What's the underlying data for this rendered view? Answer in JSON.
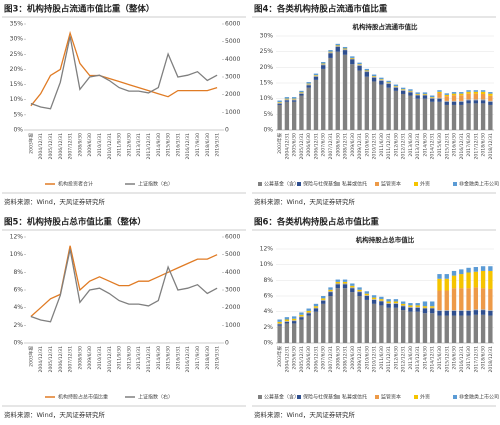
{
  "panels": [
    {
      "heading": "图3：机构持股占流通市值比重（整体）",
      "source": "资料来源：Wind，天风证券研究所"
    },
    {
      "heading": "图4：各类机构持股占流通市值比重",
      "source": "资料来源：Wind，天风证券研究所"
    },
    {
      "heading": "图5：机构持股占总市值比重（整体）",
      "source": "资料来源：Wind，天风证券研究所"
    },
    {
      "heading": "图6：各类机构持股占总市值比重",
      "source": "资料来源：Wind，天风证券研究所"
    }
  ],
  "chart_data": [
    {
      "type": "line",
      "categories": [
        "2003年报",
        "2004/12/31",
        "2005/12/31",
        "2006/12/31",
        "2007/12/31",
        "2008/9/30",
        "2009/6/30",
        "2010/3/31",
        "2010/12/31",
        "2011/9/30",
        "2012/6/30",
        "2013/3/31",
        "2013/12/31",
        "2014/9/30",
        "2015/6/30",
        "2016/3/31",
        "2016/12/31",
        "2017/9/30",
        "2018/6/30",
        "2019/3/31"
      ],
      "series": [
        {
          "name": "机构投资者合计",
          "color": "#e07b24",
          "values": [
            8,
            12,
            18,
            20,
            32,
            22,
            18,
            18,
            17,
            16,
            15,
            14,
            13,
            12,
            11,
            13,
            13,
            13,
            13,
            14
          ]
        },
        {
          "name": "上证指数（右）",
          "color": "#7f7f7f",
          "axis": "y2",
          "values": [
            1500,
            1300,
            1200,
            2700,
            5300,
            2300,
            3000,
            3100,
            2800,
            2400,
            2200,
            2200,
            2100,
            2400,
            4300,
            3000,
            3100,
            3300,
            2800,
            3100
          ]
        }
      ],
      "ylim": [
        0,
        35
      ],
      "yticks": [
        {
          "value": 0,
          "label": "0%"
        },
        {
          "value": 5,
          "label": "5%"
        },
        {
          "value": 10,
          "label": "10%"
        },
        {
          "value": 15,
          "label": "15%"
        },
        {
          "value": 20,
          "label": "20%"
        },
        {
          "value": 25,
          "label": "25%"
        },
        {
          "value": 30,
          "label": "30%"
        },
        {
          "value": 35,
          "label": "35%"
        }
      ],
      "y2lim": [
        0,
        6000
      ],
      "y2ticks": [
        0,
        1000,
        2000,
        3000,
        4000,
        5000,
        6000
      ]
    },
    {
      "type": "bar",
      "stacked": true,
      "grid": true,
      "title": "机构持股占流通市值比",
      "categories": [
        "2003年报",
        "2004/12/31",
        "2005/6/30",
        "2005/12/31",
        "2006/6/30",
        "2006/12/31",
        "2007/6/30",
        "2007/12/31",
        "2008/6/30",
        "2008/12/31",
        "2009/6/30",
        "2009/12/31",
        "2010/6/30",
        "2010/12/31",
        "2011/6/30",
        "2011/12/31",
        "2012/6/30",
        "2012/12/31",
        "2013/6/30",
        "2013/12/31",
        "2014/6/30",
        "2014/12/31",
        "2015/6/30",
        "2015/12/31",
        "2016/6/30",
        "2016/12/31",
        "2017/6/30",
        "2017/12/31",
        "2018/6/30",
        "2018/12/31"
      ],
      "series": [
        {
          "name": "公募基金（含）",
          "color": "#808080",
          "values": [
            8,
            9,
            9,
            11,
            13.5,
            16,
            19.5,
            23,
            25,
            24,
            21,
            19,
            17,
            15.5,
            14.5,
            13.5,
            12.5,
            11.5,
            11,
            10,
            10,
            9,
            9,
            8,
            8,
            8,
            8.5,
            8.5,
            8.5,
            8
          ]
        },
        {
          "name": "保险与社保基金",
          "color": "#2f4f8f",
          "values": [
            0.4,
            0.5,
            0.5,
            0.5,
            0.8,
            1,
            1.2,
            1.5,
            1.5,
            1.5,
            1.5,
            1.5,
            1.5,
            1.2,
            1.2,
            1.2,
            1,
            1,
            1,
            1,
            1,
            1,
            1,
            1,
            1,
            1,
            1,
            1,
            1,
            1
          ]
        },
        {
          "name": "私募或信托",
          "color": "#a5a5a5",
          "values": [
            0.3,
            0.3,
            0.3,
            0.3,
            0.3,
            0.3,
            0.3,
            0.3,
            0.3,
            0.3,
            0.3,
            0.3,
            0.3,
            0.3,
            0.3,
            0.3,
            0.3,
            0.3,
            0.3,
            0.3,
            0.3,
            0.3,
            0.3,
            0.3,
            0.3,
            0.3,
            0.3,
            0.3,
            0.3,
            0.3
          ]
        },
        {
          "name": "监管资本",
          "color": "#ed9a48",
          "values": [
            0,
            0,
            0,
            0,
            0,
            0,
            0,
            0,
            0,
            0,
            0,
            0,
            0,
            0,
            0,
            0,
            0,
            0,
            0,
            0,
            0,
            0,
            1.5,
            1.5,
            1.8,
            1.8,
            1.8,
            1.8,
            1.7,
            1.6
          ]
        },
        {
          "name": "外资",
          "color": "#f5c400",
          "values": [
            0.2,
            0.2,
            0.2,
            0.2,
            0.2,
            0.2,
            0.2,
            0.2,
            0.2,
            0.2,
            0.2,
            0.2,
            0.2,
            0.2,
            0.2,
            0.2,
            0.2,
            0.2,
            0.2,
            0.2,
            0.2,
            0.2,
            0.4,
            0.4,
            0.5,
            0.5,
            0.6,
            0.6,
            0.7,
            0.7
          ]
        },
        {
          "name": "非金融类上市公司",
          "color": "#5b9bd5",
          "values": [
            0.5,
            0.5,
            0.5,
            0.5,
            0.5,
            0.5,
            0.5,
            0.5,
            0.5,
            0.5,
            0.5,
            0.5,
            0.5,
            0.5,
            0.5,
            0.5,
            0.5,
            0.5,
            0.5,
            0.5,
            0.5,
            0.5,
            0.5,
            0.5,
            0.5,
            0.5,
            0.5,
            0.5,
            0.5,
            0.5
          ]
        }
      ],
      "ylim": [
        0,
        30
      ],
      "yticks": [
        {
          "value": 0,
          "label": "0%"
        },
        {
          "value": 5,
          "label": "5%"
        },
        {
          "value": 10,
          "label": "10%"
        },
        {
          "value": 15,
          "label": "15%"
        },
        {
          "value": 20,
          "label": "20%"
        },
        {
          "value": 25,
          "label": "25%"
        },
        {
          "value": 30,
          "label": "30%"
        }
      ]
    },
    {
      "type": "line",
      "categories": [
        "2003年报",
        "2004/12/31",
        "2005/12/31",
        "2006/12/31",
        "2007/12/31",
        "2008/9/30",
        "2009/6/30",
        "2010/3/31",
        "2010/12/31",
        "2011/9/30",
        "2012/6/30",
        "2013/3/31",
        "2013/12/31",
        "2014/9/30",
        "2015/6/30",
        "2016/3/31",
        "2016/12/31",
        "2017/9/30",
        "2018/6/30",
        "2019/3/31"
      ],
      "series": [
        {
          "name": "机构持股占总市值比重",
          "color": "#e07b24",
          "values": [
            3,
            4,
            5,
            5.5,
            11,
            6,
            7,
            7.5,
            7,
            6.5,
            6.5,
            7,
            7,
            7.5,
            8,
            8.5,
            9,
            9.5,
            9.5,
            10
          ]
        },
        {
          "name": "上证指数（右）",
          "color": "#7f7f7f",
          "axis": "y2",
          "values": [
            1500,
            1300,
            1200,
            2700,
            5300,
            2300,
            3000,
            3100,
            2800,
            2400,
            2200,
            2200,
            2100,
            2400,
            4300,
            3000,
            3100,
            3300,
            2800,
            3100
          ]
        }
      ],
      "ylim": [
        0,
        12
      ],
      "yticks": [
        {
          "value": 0,
          "label": "0%"
        },
        {
          "value": 2,
          "label": "2%"
        },
        {
          "value": 4,
          "label": "4%"
        },
        {
          "value": 6,
          "label": "6%"
        },
        {
          "value": 8,
          "label": "8%"
        },
        {
          "value": 10,
          "label": "10%"
        },
        {
          "value": 12,
          "label": "12%"
        }
      ],
      "y2lim": [
        0,
        6000
      ],
      "y2ticks": [
        0,
        1000,
        2000,
        3000,
        4000,
        5000,
        6000
      ]
    },
    {
      "type": "bar",
      "stacked": true,
      "grid": true,
      "title": "机构持股占总市值比",
      "categories": [
        "2003年报",
        "2004/12/31",
        "2005/6/30",
        "2005/12/31",
        "2006/6/30",
        "2006/12/31",
        "2007/6/30",
        "2007/12/31",
        "2008/6/30",
        "2008/12/31",
        "2009/6/30",
        "2009/12/31",
        "2010/6/30",
        "2010/12/31",
        "2011/6/30",
        "2011/12/31",
        "2012/6/30",
        "2012/12/31",
        "2013/6/30",
        "2013/12/31",
        "2014/6/30",
        "2014/12/31",
        "2015/6/30",
        "2015/12/31",
        "2016/6/30",
        "2016/12/31",
        "2017/6/30",
        "2017/12/31",
        "2018/6/30",
        "2018/12/31"
      ],
      "series": [
        {
          "name": "公募基金（含）",
          "color": "#808080",
          "values": [
            2.2,
            2.5,
            2.5,
            3,
            3.5,
            4,
            5,
            6,
            7,
            7,
            6.5,
            6,
            5.5,
            5,
            4.8,
            4.5,
            4.5,
            4.2,
            4,
            4,
            3.8,
            3.8,
            3.5,
            3.5,
            3.5,
            3.5,
            3.5,
            3.6,
            3.6,
            3.5
          ]
        },
        {
          "name": "保险与社保基金",
          "color": "#2f4f8f",
          "values": [
            0.2,
            0.2,
            0.3,
            0.3,
            0.3,
            0.4,
            0.4,
            0.5,
            0.5,
            0.5,
            0.5,
            0.5,
            0.5,
            0.5,
            0.5,
            0.5,
            0.5,
            0.5,
            0.5,
            0.5,
            0.6,
            0.6,
            0.6,
            0.6,
            0.6,
            0.6,
            0.6,
            0.6,
            0.6,
            0.6
          ]
        },
        {
          "name": "私募或信托",
          "color": "#a5a5a5",
          "values": [
            0.1,
            0.1,
            0.1,
            0.1,
            0.1,
            0.1,
            0.1,
            0.1,
            0.1,
            0.1,
            0.1,
            0.1,
            0.1,
            0.1,
            0.1,
            0.1,
            0.1,
            0.1,
            0.1,
            0.1,
            0.1,
            0.1,
            0.1,
            0.1,
            0.1,
            0.1,
            0.1,
            0.1,
            0.1,
            0.1
          ]
        },
        {
          "name": "监管资本",
          "color": "#ed9a48",
          "values": [
            0,
            0,
            0,
            0,
            0,
            0,
            0,
            0,
            0,
            0,
            0,
            0,
            0,
            0,
            0,
            0,
            0,
            0,
            0,
            0,
            0,
            0,
            2.5,
            2.5,
            2.8,
            2.8,
            2.8,
            2.8,
            2.7,
            2.7
          ]
        },
        {
          "name": "外资",
          "color": "#f5c400",
          "values": [
            0.2,
            0.2,
            0.2,
            0.2,
            0.2,
            0.2,
            0.2,
            0.2,
            0.2,
            0.2,
            0.2,
            0.2,
            0.2,
            0.2,
            0.2,
            0.2,
            0.2,
            0.2,
            0.2,
            0.2,
            0.2,
            0.2,
            1.5,
            1.5,
            1.6,
            1.8,
            2,
            2,
            2.2,
            2.3
          ]
        },
        {
          "name": "非金融类上市公司",
          "color": "#5b9bd5",
          "values": [
            0.3,
            0.3,
            0.3,
            0.3,
            0.3,
            0.3,
            0.3,
            0.3,
            0.3,
            0.3,
            0.3,
            0.3,
            0.3,
            0.3,
            0.3,
            0.3,
            0.3,
            0.3,
            0.3,
            0.3,
            0.6,
            0.6,
            0.6,
            0.6,
            0.6,
            0.6,
            0.6,
            0.6,
            0.6,
            0.6
          ]
        }
      ],
      "ylim": [
        0,
        12
      ],
      "yticks": [
        {
          "value": 0,
          "label": "0%"
        },
        {
          "value": 2,
          "label": "2%"
        },
        {
          "value": 4,
          "label": "4%"
        },
        {
          "value": 6,
          "label": "6%"
        },
        {
          "value": 8,
          "label": "8%"
        },
        {
          "value": 10,
          "label": "10%"
        },
        {
          "value": 12,
          "label": "12%"
        }
      ]
    }
  ]
}
